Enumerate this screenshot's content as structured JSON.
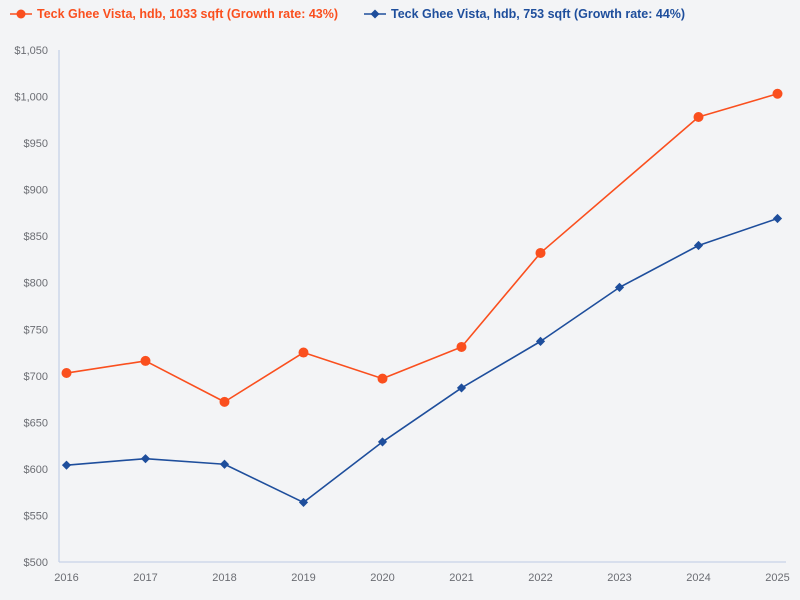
{
  "chart": {
    "background": "#f3f4f6",
    "axis_color": "#c7d2e8",
    "tick_label_color": "#6b6d73"
  },
  "legend": {
    "items": [
      {
        "label": "Teck Ghee Vista, hdb, 1033 sqft (Growth rate: 43%)",
        "color": "#fa4f1e",
        "marker": "circle"
      },
      {
        "label": "Teck Ghee Vista, hdb, 753 sqft (Growth rate: 44%)",
        "color": "#1e4e9c",
        "marker": "diamond"
      }
    ]
  },
  "chart_data": {
    "type": "line",
    "x": [
      "2016",
      "2017",
      "2018",
      "2019",
      "2020",
      "2021",
      "2022",
      "2023",
      "2024",
      "2025"
    ],
    "series": [
      {
        "name": "Teck Ghee Vista, hdb, 1033 sqft (Growth rate: 43%)",
        "color": "#fa4f1e",
        "marker": "circle",
        "values": [
          703,
          716,
          672,
          725,
          697,
          731,
          832,
          null,
          978,
          1003
        ]
      },
      {
        "name": "Teck Ghee Vista, hdb, 753 sqft (Growth rate: 44%)",
        "color": "#1e4e9c",
        "marker": "diamond",
        "values": [
          604,
          611,
          605,
          564,
          629,
          687,
          737,
          795,
          840,
          869
        ]
      }
    ],
    "title": "",
    "xlabel": "",
    "ylabel": "",
    "ylim": [
      500,
      1050
    ],
    "ytick_step": 50,
    "yticks": [
      "$500",
      "$550",
      "$600",
      "$650",
      "$700",
      "$750",
      "$800",
      "$850",
      "$900",
      "$950",
      "$1,000",
      "$1,050"
    ],
    "grid": false,
    "legend_position": "top-left",
    "connect_gaps": true
  }
}
